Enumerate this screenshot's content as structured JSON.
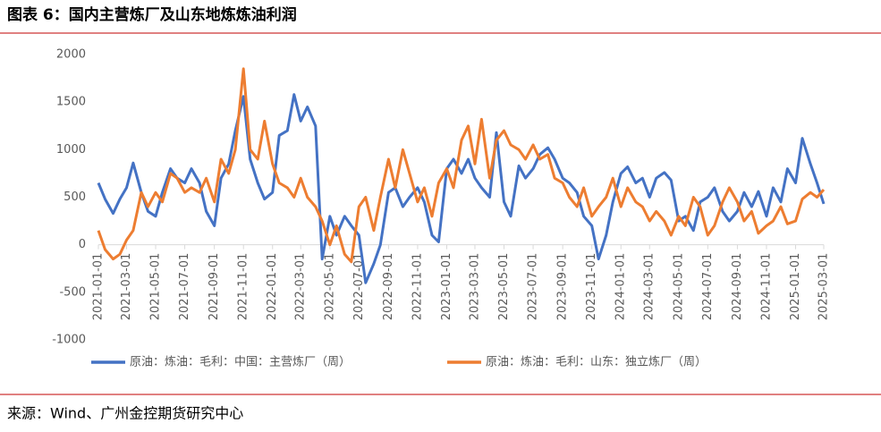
{
  "header": {
    "title": "图表 6：国内主营炼厂及山东地炼炼油利润"
  },
  "chart_data": {
    "type": "line",
    "x": [
      "2021-01-01",
      "2021-01-15",
      "2021-02-01",
      "2021-02-15",
      "2021-03-01",
      "2021-03-15",
      "2021-04-01",
      "2021-04-15",
      "2021-05-01",
      "2021-05-15",
      "2021-06-01",
      "2021-06-15",
      "2021-07-01",
      "2021-07-15",
      "2021-08-01",
      "2021-08-15",
      "2021-09-01",
      "2021-09-15",
      "2021-10-01",
      "2021-10-15",
      "2021-11-01",
      "2021-11-15",
      "2021-12-01",
      "2021-12-15",
      "2022-01-01",
      "2022-01-15",
      "2022-02-01",
      "2022-02-15",
      "2022-03-01",
      "2022-03-15",
      "2022-04-01",
      "2022-04-15",
      "2022-05-01",
      "2022-05-15",
      "2022-06-01",
      "2022-06-15",
      "2022-07-01",
      "2022-07-15",
      "2022-08-01",
      "2022-08-15",
      "2022-09-01",
      "2022-09-15",
      "2022-10-01",
      "2022-10-15",
      "2022-11-01",
      "2022-11-15",
      "2022-12-01",
      "2022-12-15",
      "2023-01-01",
      "2023-01-15",
      "2023-02-01",
      "2023-02-15",
      "2023-03-01",
      "2023-03-15",
      "2023-04-01",
      "2023-04-15",
      "2023-05-01",
      "2023-05-15",
      "2023-06-01",
      "2023-06-15",
      "2023-07-01",
      "2023-07-15",
      "2023-08-01",
      "2023-08-15",
      "2023-09-01",
      "2023-09-15",
      "2023-10-01",
      "2023-10-15",
      "2023-11-01",
      "2023-11-15",
      "2023-12-01",
      "2023-12-15",
      "2024-01-01",
      "2024-01-15",
      "2024-02-01",
      "2024-02-15",
      "2024-03-01",
      "2024-03-15",
      "2024-04-01",
      "2024-04-15",
      "2024-05-01",
      "2024-05-15",
      "2024-06-01",
      "2024-06-15",
      "2024-07-01",
      "2024-07-15",
      "2024-08-01",
      "2024-08-15",
      "2024-09-01",
      "2024-09-15",
      "2024-10-01",
      "2024-10-15",
      "2024-11-01",
      "2024-11-15",
      "2024-12-01",
      "2024-12-15",
      "2025-01-01",
      "2025-01-15",
      "2025-02-01",
      "2025-02-15",
      "2025-03-01"
    ],
    "series": [
      {
        "name": "原油：炼油：毛利：中国：主营炼厂（周）",
        "color": "#4472c4",
        "values": [
          650,
          480,
          330,
          480,
          600,
          860,
          550,
          350,
          300,
          550,
          800,
          700,
          650,
          800,
          650,
          350,
          200,
          700,
          850,
          1200,
          1560,
          900,
          650,
          480,
          550,
          1150,
          1200,
          1580,
          1300,
          1450,
          1250,
          -150,
          300,
          100,
          300,
          200,
          100,
          -400,
          -200,
          0,
          550,
          600,
          400,
          500,
          600,
          450,
          100,
          30,
          800,
          900,
          750,
          900,
          700,
          600,
          500,
          1180,
          450,
          300,
          830,
          700,
          800,
          950,
          1020,
          900,
          700,
          650,
          550,
          300,
          200,
          -150,
          100,
          450,
          750,
          820,
          650,
          700,
          500,
          700,
          760,
          680,
          250,
          300,
          150,
          450,
          500,
          600,
          350,
          250,
          350,
          550,
          400,
          560,
          300,
          600,
          450,
          800,
          650,
          1120,
          850,
          650,
          430
        ]
      },
      {
        "name": "原油：炼油：毛利：山东：独立炼厂（周）",
        "color": "#ed7d31",
        "values": [
          150,
          -50,
          -150,
          -100,
          50,
          150,
          550,
          400,
          550,
          450,
          750,
          700,
          550,
          600,
          550,
          700,
          450,
          900,
          750,
          1000,
          1850,
          1000,
          900,
          1300,
          850,
          650,
          600,
          500,
          700,
          500,
          400,
          250,
          0,
          200,
          -100,
          -180,
          400,
          500,
          150,
          500,
          900,
          600,
          1000,
          750,
          450,
          600,
          300,
          650,
          800,
          600,
          1100,
          1250,
          850,
          1320,
          700,
          1100,
          1200,
          1050,
          1000,
          900,
          1050,
          900,
          950,
          700,
          650,
          500,
          400,
          600,
          300,
          400,
          500,
          700,
          400,
          600,
          450,
          400,
          250,
          350,
          250,
          100,
          300,
          200,
          500,
          400,
          100,
          200,
          450,
          600,
          450,
          250,
          350,
          120,
          200,
          250,
          400,
          220,
          250,
          480,
          550,
          500,
          580
        ]
      }
    ],
    "xlim": [
      "2021-01-01",
      "2025-03-01"
    ],
    "xticks": [
      "2021-01-01",
      "2021-03-01",
      "2021-05-01",
      "2021-07-01",
      "2021-09-01",
      "2021-11-01",
      "2022-01-01",
      "2022-03-01",
      "2022-05-01",
      "2022-07-01",
      "2022-09-01",
      "2022-11-01",
      "2023-01-01",
      "2023-03-01",
      "2023-05-01",
      "2023-07-01",
      "2023-09-01",
      "2023-11-01",
      "2024-01-01",
      "2024-03-01",
      "2024-05-01",
      "2024-07-01",
      "2024-09-01",
      "2024-11-01",
      "2025-01-01",
      "2025-03-01"
    ],
    "ylim": [
      -1000,
      2000
    ],
    "yticks": [
      -1000,
      -500,
      0,
      500,
      1000,
      1500,
      2000
    ],
    "grid": false,
    "legend": "bottom"
  },
  "footer": {
    "source": "来源：Wind、广州金控期货研究中心"
  }
}
